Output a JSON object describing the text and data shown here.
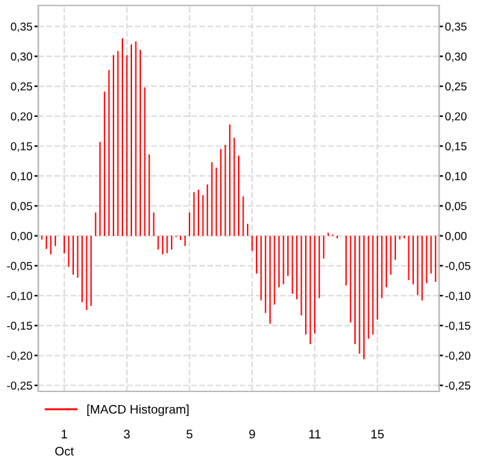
{
  "chart_data": {
    "type": "bar",
    "categories": [
      null,
      null,
      null,
      null,
      null,
      "1",
      null,
      null,
      null,
      null,
      null,
      null,
      null,
      null,
      null,
      null,
      null,
      null,
      null,
      "3",
      null,
      null,
      null,
      null,
      null,
      null,
      null,
      null,
      null,
      null,
      null,
      null,
      null,
      "5",
      null,
      null,
      null,
      null,
      null,
      null,
      null,
      null,
      null,
      null,
      null,
      null,
      null,
      "9",
      null,
      null,
      null,
      null,
      null,
      null,
      null,
      null,
      null,
      null,
      null,
      null,
      null,
      "11",
      null,
      null,
      null,
      null,
      null,
      null,
      null,
      null,
      null,
      null,
      null,
      null,
      null,
      "15",
      null,
      null,
      null,
      null,
      null,
      null,
      null,
      null,
      null,
      null,
      null,
      null,
      null
    ],
    "series": [
      {
        "name": "[MACD Histogram]",
        "color": "#ff0000",
        "values": [
          -0.006,
          -0.022,
          -0.031,
          -0.017,
          0,
          -0.029,
          -0.052,
          -0.065,
          -0.07,
          -0.111,
          -0.124,
          -0.117,
          0.039,
          0.157,
          0.241,
          0.277,
          0.302,
          0.309,
          0.33,
          0.302,
          0.32,
          0.325,
          0.311,
          0.248,
          0.136,
          0.039,
          -0.023,
          -0.031,
          -0.029,
          -0.023,
          -0.002,
          -0.007,
          -0.017,
          0.039,
          0.073,
          0.077,
          0.068,
          0.086,
          0.123,
          0.114,
          0.145,
          0.152,
          0.186,
          0.164,
          0.134,
          0.066,
          0.02,
          -0.025,
          -0.063,
          -0.108,
          -0.129,
          -0.147,
          -0.115,
          -0.086,
          -0.081,
          -0.067,
          -0.097,
          -0.106,
          -0.133,
          -0.165,
          -0.181,
          -0.163,
          -0.104,
          -0.038,
          0.005,
          0.002,
          -0.004,
          0,
          -0.083,
          -0.145,
          -0.181,
          -0.197,
          -0.206,
          -0.172,
          -0.165,
          -0.14,
          -0.104,
          -0.086,
          -0.065,
          -0.04,
          -0.006,
          -0.004,
          -0.074,
          -0.081,
          -0.099,
          -0.108,
          -0.079,
          -0.063,
          -0.077
        ]
      }
    ],
    "ylim": [
      -0.26,
      0.385
    ],
    "yticks": [
      {
        "value": -0.25,
        "label": "-0,25"
      },
      {
        "value": -0.2,
        "label": "-0,20"
      },
      {
        "value": -0.15,
        "label": "-0,15"
      },
      {
        "value": -0.1,
        "label": "-0,10"
      },
      {
        "value": -0.05,
        "label": "-0,05"
      },
      {
        "value": 0,
        "label": "0,00"
      },
      {
        "value": 0.05,
        "label": "0,05"
      },
      {
        "value": 0.1,
        "label": "0,10"
      },
      {
        "value": 0.15,
        "label": "0,15"
      },
      {
        "value": 0.2,
        "label": "0,20"
      },
      {
        "value": 0.25,
        "label": "0,25"
      },
      {
        "value": 0.3,
        "label": "0,30"
      },
      {
        "value": 0.35,
        "label": "0,35"
      }
    ],
    "y2lim": [
      -0.26,
      0.385
    ],
    "y2ticks": [
      {
        "value": -0.25,
        "label": "-0,25"
      },
      {
        "value": -0.2,
        "label": "-0,20"
      },
      {
        "value": -0.15,
        "label": "-0,15"
      },
      {
        "value": -0.1,
        "label": "-0,10"
      },
      {
        "value": -0.05,
        "label": "-0,05"
      },
      {
        "value": 0,
        "label": "0,00"
      },
      {
        "value": 0.05,
        "label": "0,05"
      },
      {
        "value": 0.1,
        "label": "0,10"
      },
      {
        "value": 0.15,
        "label": "0,15"
      },
      {
        "value": 0.2,
        "label": "0,20"
      },
      {
        "value": 0.25,
        "label": "0,25"
      },
      {
        "value": 0.3,
        "label": "0,30"
      },
      {
        "value": 0.35,
        "label": "0,35"
      }
    ],
    "annotations": [
      "Oct"
    ],
    "grid": true,
    "legend": "bottom"
  }
}
